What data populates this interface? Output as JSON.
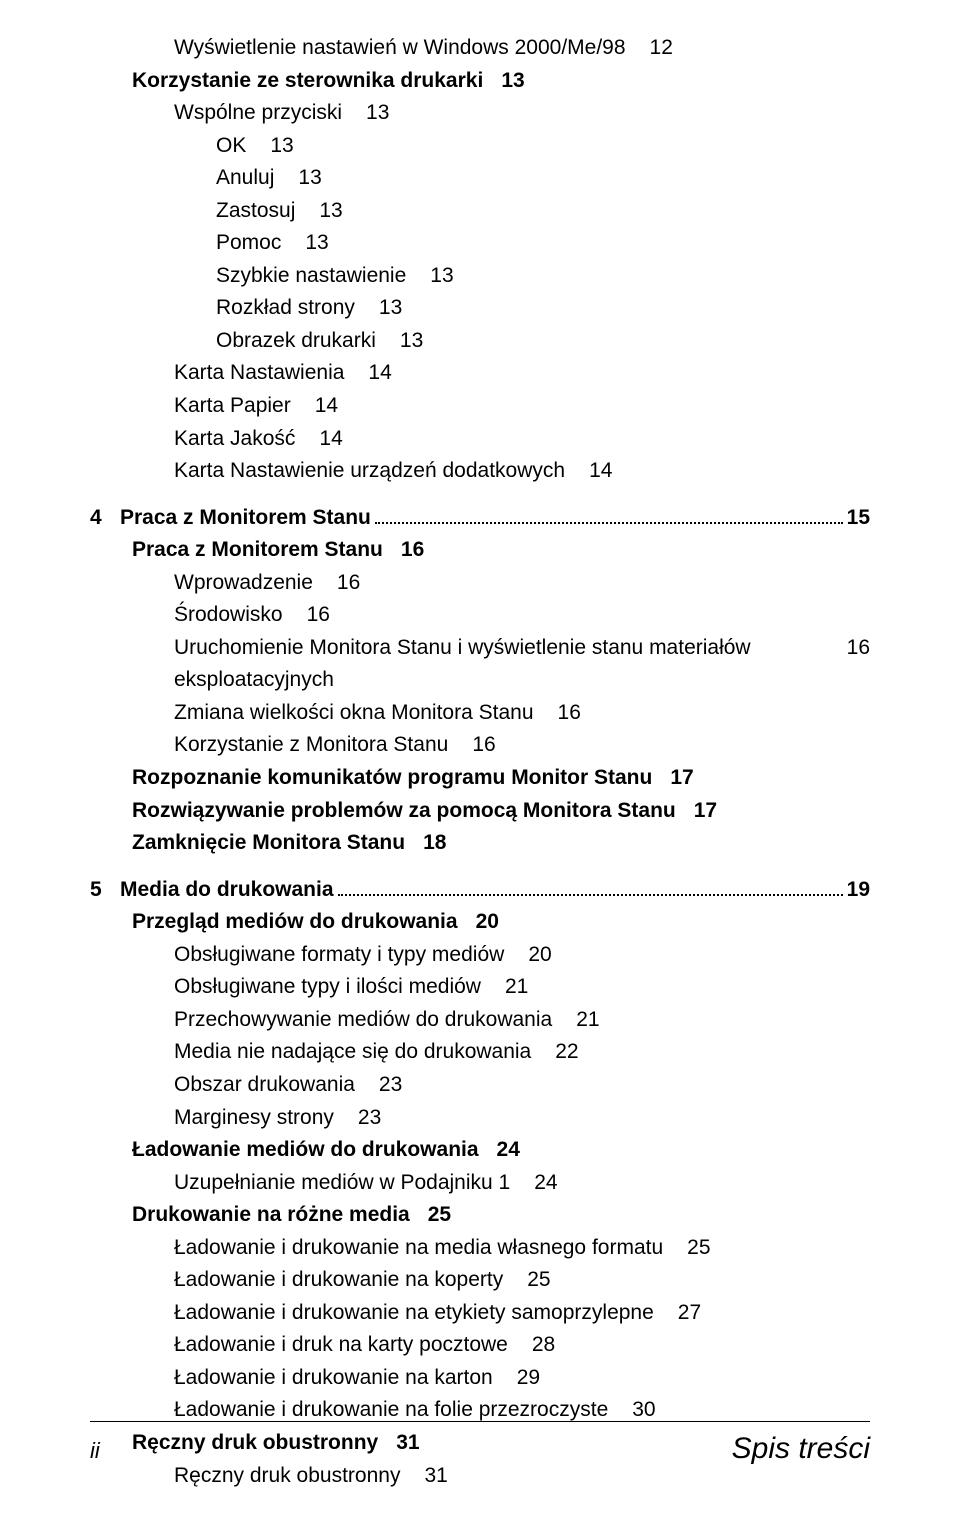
{
  "toc": {
    "driver_section": {
      "items": [
        {
          "text": "Wyświetlenie nastawień w Windows 2000/Me/98",
          "page": "12",
          "lvl": 2,
          "bold": false
        },
        {
          "text": "Korzystanie ze sterownika drukarki",
          "page": "13",
          "lvl": 1,
          "bold": true
        },
        {
          "text": "Wspólne przyciski",
          "page": "13",
          "lvl": 2,
          "bold": false
        },
        {
          "text": "OK",
          "page": "13",
          "lvl": 3,
          "bold": false
        },
        {
          "text": "Anuluj",
          "page": "13",
          "lvl": 3,
          "bold": false
        },
        {
          "text": "Zastosuj",
          "page": "13",
          "lvl": 3,
          "bold": false
        },
        {
          "text": "Pomoc",
          "page": "13",
          "lvl": 3,
          "bold": false
        },
        {
          "text": "Szybkie nastawienie",
          "page": "13",
          "lvl": 3,
          "bold": false
        },
        {
          "text": "Rozkład strony",
          "page": "13",
          "lvl": 3,
          "bold": false
        },
        {
          "text": "Obrazek drukarki",
          "page": "13",
          "lvl": 3,
          "bold": false
        },
        {
          "text": "Karta Nastawienia",
          "page": "14",
          "lvl": 2,
          "bold": false
        },
        {
          "text": "Karta Papier",
          "page": "14",
          "lvl": 2,
          "bold": false
        },
        {
          "text": "Karta Jakość",
          "page": "14",
          "lvl": 2,
          "bold": false
        },
        {
          "text": "Karta Nastawienie urządzeń dodatkowych",
          "page": "14",
          "lvl": 2,
          "bold": false
        }
      ]
    },
    "ch4": {
      "num": "4",
      "title": "Praca z Monitorem Stanu",
      "page": "15",
      "items": [
        {
          "text": "Praca z Monitorem Stanu",
          "page": "16",
          "lvl": 1,
          "bold": true
        },
        {
          "text": "Wprowadzenie",
          "page": "16",
          "lvl": 2,
          "bold": false
        },
        {
          "text": "Środowisko",
          "page": "16",
          "lvl": 2,
          "bold": false
        },
        {
          "text": "Uruchomienie Monitora Stanu i wyświetlenie stanu materiałów eksploatacyjnych",
          "page": "16",
          "lvl": 2,
          "bold": false,
          "wrap": true
        },
        {
          "text": "Zmiana wielkości okna Monitora Stanu",
          "page": "16",
          "lvl": 2,
          "bold": false
        },
        {
          "text": "Korzystanie z Monitora Stanu",
          "page": "16",
          "lvl": 2,
          "bold": false
        },
        {
          "text": "Rozpoznanie komunikatów programu Monitor Stanu",
          "page": "17",
          "lvl": 1,
          "bold": true
        },
        {
          "text": "Rozwiązywanie problemów za pomocą Monitora Stanu",
          "page": "17",
          "lvl": 1,
          "bold": true
        },
        {
          "text": "Zamknięcie Monitora Stanu",
          "page": "18",
          "lvl": 1,
          "bold": true
        }
      ]
    },
    "ch5": {
      "num": "5",
      "title": "Media do drukowania",
      "page": "19",
      "items": [
        {
          "text": "Przegląd mediów do drukowania",
          "page": "20",
          "lvl": 1,
          "bold": true
        },
        {
          "text": "Obsługiwane formaty i typy mediów",
          "page": "20",
          "lvl": 2,
          "bold": false
        },
        {
          "text": "Obsługiwane typy i ilości mediów",
          "page": "21",
          "lvl": 2,
          "bold": false
        },
        {
          "text": "Przechowywanie mediów do drukowania",
          "page": "21",
          "lvl": 2,
          "bold": false
        },
        {
          "text": "Media nie nadające się do drukowania",
          "page": "22",
          "lvl": 2,
          "bold": false
        },
        {
          "text": "Obszar drukowania",
          "page": "23",
          "lvl": 2,
          "bold": false
        },
        {
          "text": "Marginesy strony",
          "page": "23",
          "lvl": 2,
          "bold": false
        },
        {
          "text": "Ładowanie mediów do drukowania",
          "page": "24",
          "lvl": 1,
          "bold": true
        },
        {
          "text": "Uzupełnianie mediów w Podajniku 1",
          "page": "24",
          "lvl": 2,
          "bold": false
        },
        {
          "text": "Drukowanie na różne media",
          "page": "25",
          "lvl": 1,
          "bold": true
        },
        {
          "text": "Ładowanie i drukowanie na media własnego formatu",
          "page": "25",
          "lvl": 2,
          "bold": false
        },
        {
          "text": "Ładowanie i drukowanie na koperty",
          "page": "25",
          "lvl": 2,
          "bold": false
        },
        {
          "text": "Ładowanie i drukowanie na etykiety samoprzylepne",
          "page": "27",
          "lvl": 2,
          "bold": false
        },
        {
          "text": "Ładowanie i druk na karty pocztowe",
          "page": "28",
          "lvl": 2,
          "bold": false
        },
        {
          "text": "Ładowanie i drukowanie na karton",
          "page": "29",
          "lvl": 2,
          "bold": false
        },
        {
          "text": "Ładowanie i drukowanie na  folie przezroczyste",
          "page": "30",
          "lvl": 2,
          "bold": false
        },
        {
          "text": "Ręczny druk obustronny",
          "page": "31",
          "lvl": 1,
          "bold": true
        },
        {
          "text": "Ręczny druk obustronny",
          "page": "31",
          "lvl": 2,
          "bold": false
        }
      ]
    }
  },
  "footer": {
    "page_num": "ii",
    "label": "Spis treści"
  }
}
